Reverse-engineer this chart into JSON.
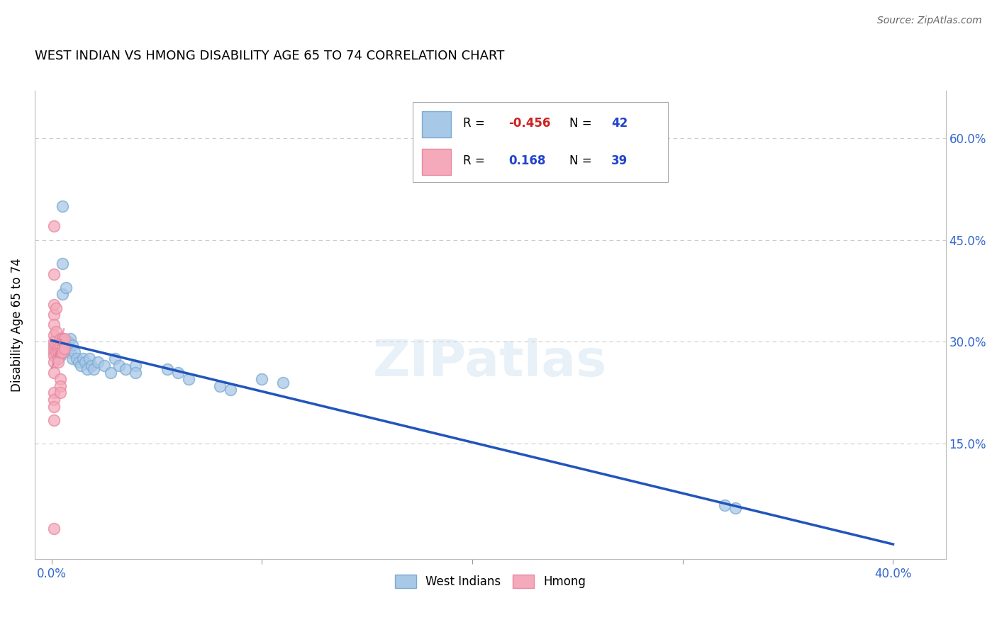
{
  "title": "WEST INDIAN VS HMONG DISABILITY AGE 65 TO 74 CORRELATION CHART",
  "source": "Source: ZipAtlas.com",
  "ylabel": "Disability Age 65 to 74",
  "x_tick_positions": [
    0.0,
    0.1,
    0.2,
    0.3,
    0.4
  ],
  "x_tick_labels": [
    "0.0%",
    "",
    "",
    "",
    "40.0%"
  ],
  "y_tick_positions": [
    0.0,
    0.15,
    0.3,
    0.45,
    0.6
  ],
  "y_tick_labels_right": [
    "",
    "15.0%",
    "30.0%",
    "45.0%",
    "60.0%"
  ],
  "xlim": [
    -0.008,
    0.425
  ],
  "ylim": [
    -0.02,
    0.67
  ],
  "west_indian_R": "-0.456",
  "west_indian_N": "42",
  "hmong_R": "0.168",
  "hmong_N": "39",
  "west_indian_color": "#a8c8e8",
  "hmong_color": "#f4aabb",
  "west_indian_edge": "#7aaad0",
  "hmong_edge": "#e888a0",
  "trend_blue": "#2255bb",
  "trend_pink": "#dd7799",
  "grid_color": "#cccccc",
  "watermark": "ZIPatlas",
  "west_indian_x": [
    0.003,
    0.003,
    0.003,
    0.004,
    0.004,
    0.005,
    0.005,
    0.005,
    0.007,
    0.008,
    0.008,
    0.009,
    0.009,
    0.01,
    0.01,
    0.011,
    0.012,
    0.013,
    0.014,
    0.015,
    0.016,
    0.017,
    0.018,
    0.019,
    0.02,
    0.022,
    0.025,
    0.028,
    0.03,
    0.032,
    0.035,
    0.04,
    0.04,
    0.055,
    0.06,
    0.065,
    0.08,
    0.085,
    0.1,
    0.11,
    0.32,
    0.325
  ],
  "west_indian_y": [
    0.295,
    0.285,
    0.275,
    0.29,
    0.28,
    0.5,
    0.415,
    0.37,
    0.38,
    0.3,
    0.29,
    0.305,
    0.285,
    0.295,
    0.275,
    0.285,
    0.275,
    0.27,
    0.265,
    0.275,
    0.27,
    0.26,
    0.275,
    0.265,
    0.26,
    0.27,
    0.265,
    0.255,
    0.275,
    0.265,
    0.26,
    0.265,
    0.255,
    0.26,
    0.255,
    0.245,
    0.235,
    0.23,
    0.245,
    0.24,
    0.06,
    0.055
  ],
  "hmong_x": [
    0.001,
    0.001,
    0.001,
    0.001,
    0.001,
    0.001,
    0.001,
    0.001,
    0.001,
    0.001,
    0.001,
    0.001,
    0.001,
    0.001,
    0.001,
    0.001,
    0.001,
    0.002,
    0.002,
    0.002,
    0.002,
    0.003,
    0.003,
    0.003,
    0.003,
    0.003,
    0.004,
    0.004,
    0.004,
    0.004,
    0.004,
    0.004,
    0.005,
    0.005,
    0.005,
    0.005,
    0.005,
    0.006,
    0.006
  ],
  "hmong_y": [
    0.47,
    0.4,
    0.355,
    0.34,
    0.325,
    0.31,
    0.3,
    0.295,
    0.29,
    0.285,
    0.28,
    0.27,
    0.255,
    0.225,
    0.215,
    0.205,
    0.185,
    0.35,
    0.315,
    0.295,
    0.285,
    0.295,
    0.29,
    0.285,
    0.275,
    0.27,
    0.305,
    0.295,
    0.285,
    0.245,
    0.235,
    0.225,
    0.305,
    0.3,
    0.295,
    0.29,
    0.285,
    0.305,
    0.29
  ],
  "hmong_low_x": [
    0.001
  ],
  "hmong_low_y": [
    0.025
  ],
  "blue_trend_x": [
    0.0,
    0.4
  ],
  "blue_trend_y": [
    0.302,
    0.002
  ],
  "pink_trend_x": [
    0.0,
    0.006
  ],
  "pink_trend_y": [
    0.26,
    0.32
  ]
}
